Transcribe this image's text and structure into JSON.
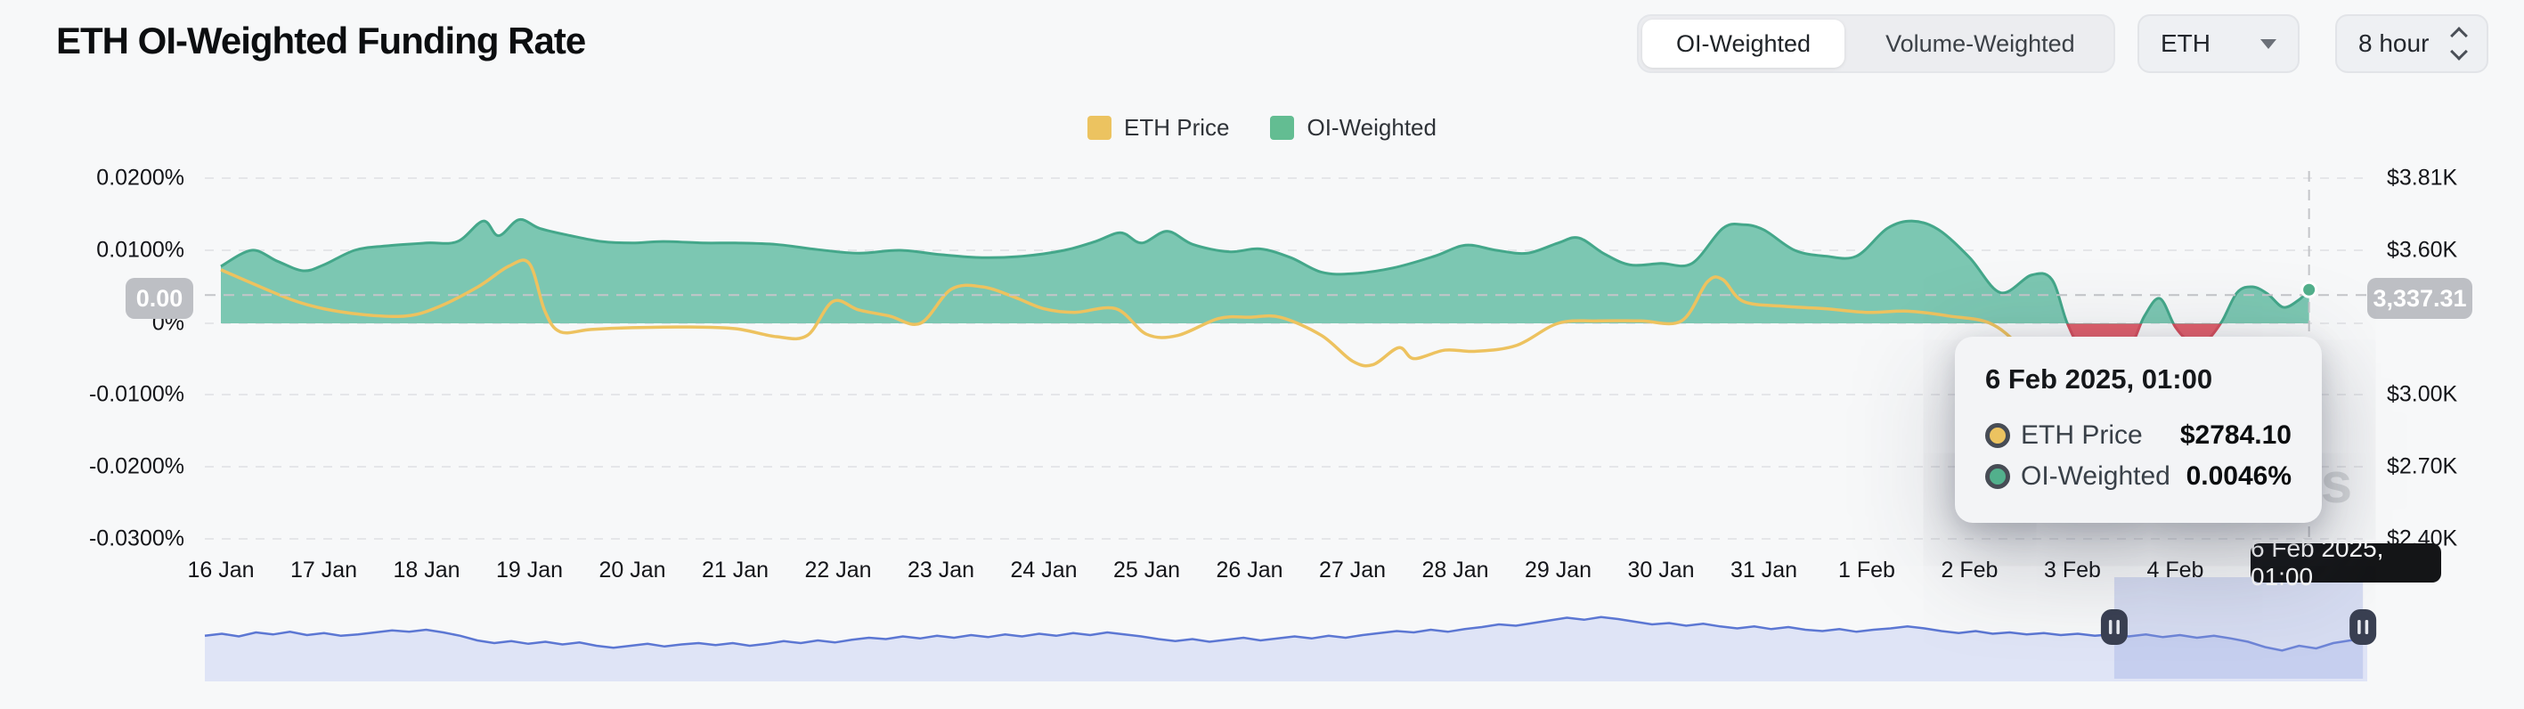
{
  "header": {
    "title": "ETH OI-Weighted Funding Rate"
  },
  "controls": {
    "segments": [
      {
        "label": "OI-Weighted",
        "active": true
      },
      {
        "label": "Volume-Weighted",
        "active": false
      }
    ],
    "coin_select": {
      "value": "ETH"
    },
    "interval_select": {
      "value": "8 hour"
    }
  },
  "legend": [
    {
      "label": "ETH Price",
      "color": "#ecc360"
    },
    {
      "label": "OI-Weighted",
      "color": "#63bd92"
    }
  ],
  "watermark": "coinglass",
  "badges": {
    "left_axis": "0.00",
    "right_axis": "3,337.31",
    "date": "6 Feb 2025, 01:00"
  },
  "tooltip": {
    "date": "6 Feb 2025, 01:00",
    "rows": [
      {
        "label": "ETH Price",
        "value": "$2784.10",
        "color": "#ecc360"
      },
      {
        "label": "OI-Weighted",
        "value": "0.0046%",
        "color": "#52b08c"
      }
    ]
  },
  "chart_data": {
    "type": "area+line",
    "title": "ETH OI-Weighted Funding Rate",
    "interval": "8 hour",
    "left_axis": {
      "labels": [
        "0.0200%",
        "0.0100%",
        "0%",
        "-0.0100%",
        "-0.0200%",
        "-0.0300%"
      ],
      "values": [
        0.02,
        0.01,
        0,
        -0.01,
        -0.02,
        -0.03
      ],
      "ylim": [
        -0.03,
        0.02
      ]
    },
    "right_axis": {
      "labels": [
        "$3.81K",
        "$3.60K",
        "$3.00K",
        "$2.70K",
        "$2.40K"
      ],
      "values": [
        3810,
        3600,
        3000,
        2700,
        2400
      ],
      "ylim": [
        2400,
        3810
      ]
    },
    "x_ticks": [
      "16 Jan",
      "17 Jan",
      "18 Jan",
      "19 Jan",
      "20 Jan",
      "21 Jan",
      "22 Jan",
      "23 Jan",
      "24 Jan",
      "25 Jan",
      "26 Jan",
      "27 Jan",
      "28 Jan",
      "29 Jan",
      "30 Jan",
      "31 Jan",
      "1 Feb",
      "2 Feb",
      "3 Feb",
      "4 Feb"
    ],
    "series": [
      {
        "name": "OI-Weighted",
        "kind": "area",
        "unit": "%",
        "fill_positive": "#7cc7b2",
        "fill_negative": "#e2606d",
        "line_positive": "#44a78a",
        "line_negative": "#d44f5e",
        "points_day_pct": [
          [
            0,
            0.0078
          ],
          [
            0.3,
            0.01
          ],
          [
            0.55,
            0.0085
          ],
          [
            0.8,
            0.0072
          ],
          [
            1.0,
            0.008
          ],
          [
            1.3,
            0.01
          ],
          [
            1.6,
            0.0106
          ],
          [
            2.0,
            0.011
          ],
          [
            2.3,
            0.0112
          ],
          [
            2.55,
            0.014
          ],
          [
            2.7,
            0.012
          ],
          [
            2.9,
            0.0142
          ],
          [
            3.1,
            0.013
          ],
          [
            3.4,
            0.012
          ],
          [
            3.7,
            0.0112
          ],
          [
            4.0,
            0.011
          ],
          [
            4.3,
            0.0112
          ],
          [
            4.7,
            0.011
          ],
          [
            5.0,
            0.011
          ],
          [
            5.4,
            0.0108
          ],
          [
            5.8,
            0.0101
          ],
          [
            6.2,
            0.0096
          ],
          [
            6.6,
            0.01
          ],
          [
            7.0,
            0.0094
          ],
          [
            7.4,
            0.009
          ],
          [
            7.8,
            0.0092
          ],
          [
            8.2,
            0.01
          ],
          [
            8.5,
            0.0112
          ],
          [
            8.75,
            0.0124
          ],
          [
            8.95,
            0.011
          ],
          [
            9.2,
            0.0126
          ],
          [
            9.45,
            0.0108
          ],
          [
            9.8,
            0.0098
          ],
          [
            10.1,
            0.0102
          ],
          [
            10.4,
            0.009
          ],
          [
            10.7,
            0.007
          ],
          [
            11.0,
            0.0068
          ],
          [
            11.4,
            0.0076
          ],
          [
            11.8,
            0.0092
          ],
          [
            12.1,
            0.0107
          ],
          [
            12.4,
            0.01
          ],
          [
            12.7,
            0.0096
          ],
          [
            13.0,
            0.011
          ],
          [
            13.2,
            0.0117
          ],
          [
            13.45,
            0.0095
          ],
          [
            13.7,
            0.008
          ],
          [
            14.0,
            0.0082
          ],
          [
            14.3,
            0.0082
          ],
          [
            14.6,
            0.013
          ],
          [
            14.8,
            0.0135
          ],
          [
            15.0,
            0.0128
          ],
          [
            15.3,
            0.01
          ],
          [
            15.6,
            0.0092
          ],
          [
            15.9,
            0.0092
          ],
          [
            16.2,
            0.013
          ],
          [
            16.45,
            0.014
          ],
          [
            16.7,
            0.0128
          ],
          [
            17.0,
            0.009
          ],
          [
            17.3,
            0.0042
          ],
          [
            17.6,
            0.0066
          ],
          [
            17.8,
            0.006
          ],
          [
            17.95,
            0.0
          ],
          [
            18.1,
            -0.0035
          ],
          [
            18.35,
            -0.0036
          ],
          [
            18.55,
            -0.0034
          ],
          [
            18.7,
            0.001
          ],
          [
            18.85,
            0.0034
          ],
          [
            19.0,
            -0.0005
          ],
          [
            19.15,
            -0.0026
          ],
          [
            19.3,
            -0.0024
          ],
          [
            19.45,
            0.0002
          ],
          [
            19.6,
            0.0042
          ],
          [
            19.75,
            0.005
          ],
          [
            19.9,
            0.004
          ],
          [
            20.05,
            0.0022
          ],
          [
            20.2,
            0.0032
          ],
          [
            20.3,
            0.0046
          ]
        ]
      },
      {
        "name": "ETH Price",
        "kind": "line",
        "unit": "USD",
        "color": "#edc25f",
        "points_day_usd": [
          [
            0,
            3520
          ],
          [
            0.3,
            3465
          ],
          [
            0.7,
            3395
          ],
          [
            1.0,
            3360
          ],
          [
            1.4,
            3335
          ],
          [
            1.8,
            3330
          ],
          [
            2.1,
            3365
          ],
          [
            2.5,
            3450
          ],
          [
            2.8,
            3535
          ],
          [
            3.0,
            3545
          ],
          [
            3.15,
            3350
          ],
          [
            3.3,
            3265
          ],
          [
            3.6,
            3275
          ],
          [
            4.0,
            3282
          ],
          [
            4.5,
            3285
          ],
          [
            5.0,
            3278
          ],
          [
            5.4,
            3245
          ],
          [
            5.7,
            3250
          ],
          [
            5.95,
            3390
          ],
          [
            6.2,
            3355
          ],
          [
            6.5,
            3330
          ],
          [
            6.8,
            3300
          ],
          [
            7.1,
            3440
          ],
          [
            7.4,
            3450
          ],
          [
            7.7,
            3410
          ],
          [
            8.0,
            3360
          ],
          [
            8.3,
            3345
          ],
          [
            8.7,
            3360
          ],
          [
            9.0,
            3255
          ],
          [
            9.3,
            3250
          ],
          [
            9.7,
            3320
          ],
          [
            10.0,
            3325
          ],
          [
            10.3,
            3325
          ],
          [
            10.7,
            3250
          ],
          [
            11.0,
            3145
          ],
          [
            11.2,
            3130
          ],
          [
            11.45,
            3200
          ],
          [
            11.6,
            3155
          ],
          [
            11.9,
            3190
          ],
          [
            12.2,
            3185
          ],
          [
            12.6,
            3210
          ],
          [
            13.0,
            3300
          ],
          [
            13.4,
            3310
          ],
          [
            13.8,
            3310
          ],
          [
            14.2,
            3310
          ],
          [
            14.45,
            3470
          ],
          [
            14.6,
            3480
          ],
          [
            14.8,
            3390
          ],
          [
            15.2,
            3370
          ],
          [
            15.6,
            3360
          ],
          [
            16.0,
            3345
          ],
          [
            16.4,
            3350
          ],
          [
            16.8,
            3330
          ],
          [
            17.2,
            3300
          ],
          [
            17.5,
            3200
          ],
          [
            17.8,
            3050
          ],
          [
            18.1,
            2850
          ],
          [
            18.4,
            2700
          ],
          [
            18.7,
            2640
          ],
          [
            19.0,
            2720
          ],
          [
            19.3,
            2780
          ],
          [
            19.6,
            2750
          ],
          [
            19.9,
            2700
          ],
          [
            20.1,
            2740
          ],
          [
            20.3,
            2784.1
          ]
        ]
      }
    ],
    "crosshair": {
      "date": "6 Feb 2025, 01:00",
      "day": 20.3,
      "funding_pct": 0.0046,
      "price_usd": 2784.1,
      "left_axis_label": "0.00",
      "right_axis_label": "3,337.31"
    },
    "navigator": {
      "line_color": "#5c77d3",
      "fill_color": "#dfe4f6",
      "selection_from": 0.883,
      "selection_to": 0.998,
      "values": [
        0.55,
        0.58,
        0.54,
        0.6,
        0.57,
        0.61,
        0.56,
        0.59,
        0.55,
        0.57,
        0.6,
        0.63,
        0.61,
        0.64,
        0.6,
        0.55,
        0.48,
        0.44,
        0.47,
        0.43,
        0.46,
        0.42,
        0.45,
        0.4,
        0.37,
        0.4,
        0.43,
        0.39,
        0.42,
        0.44,
        0.41,
        0.44,
        0.4,
        0.43,
        0.47,
        0.44,
        0.48,
        0.45,
        0.49,
        0.52,
        0.5,
        0.54,
        0.51,
        0.55,
        0.52,
        0.56,
        0.53,
        0.57,
        0.54,
        0.58,
        0.55,
        0.59,
        0.56,
        0.6,
        0.57,
        0.54,
        0.5,
        0.47,
        0.5,
        0.46,
        0.49,
        0.52,
        0.48,
        0.51,
        0.54,
        0.51,
        0.55,
        0.52,
        0.56,
        0.59,
        0.62,
        0.6,
        0.64,
        0.61,
        0.65,
        0.68,
        0.72,
        0.7,
        0.74,
        0.78,
        0.82,
        0.79,
        0.83,
        0.8,
        0.76,
        0.72,
        0.74,
        0.7,
        0.73,
        0.69,
        0.66,
        0.69,
        0.65,
        0.68,
        0.64,
        0.62,
        0.65,
        0.61,
        0.64,
        0.66,
        0.69,
        0.66,
        0.62,
        0.59,
        0.62,
        0.58,
        0.6,
        0.57,
        0.59,
        0.56,
        0.58,
        0.55,
        0.57,
        0.54,
        0.57,
        0.53,
        0.56,
        0.52,
        0.55,
        0.51,
        0.46,
        0.38,
        0.33,
        0.4,
        0.36,
        0.44,
        0.48,
        0.5
      ]
    },
    "grid": {
      "horizontal_dashed": true,
      "legend_position": "top-center"
    }
  }
}
